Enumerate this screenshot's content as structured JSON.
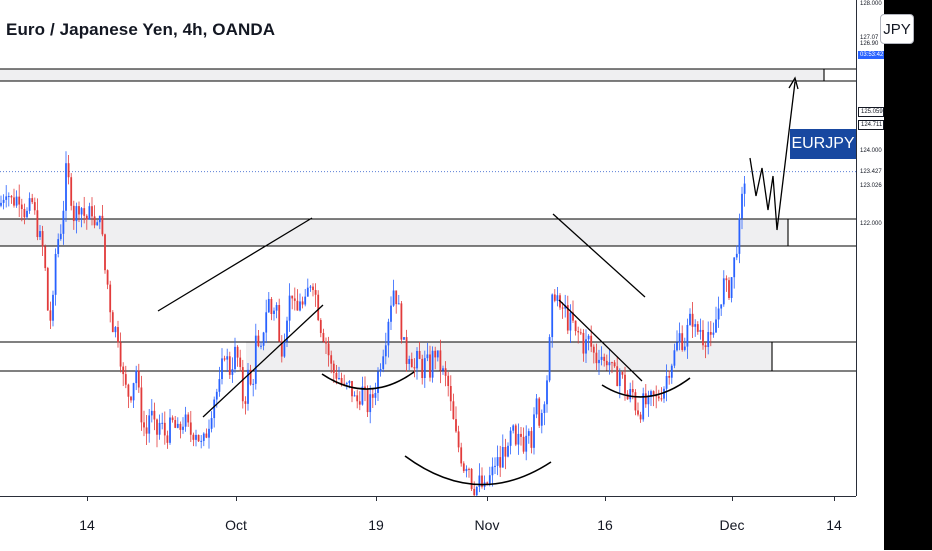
{
  "header": {
    "title": "Euro / Japanese Yen, 4h, OANDA"
  },
  "badges": {
    "currency": "JPY",
    "symbol": "EURJPY"
  },
  "colors": {
    "up": "#2962ff",
    "down": "#e23b3b",
    "zone_fill": "#efeff1",
    "drawing": "#000000",
    "price_line": "#5b7fd6",
    "badge_bg": "#1848a0"
  },
  "chart_data": {
    "type": "candlestick",
    "symbol": "EURJPY",
    "interval": "4h",
    "x_ticks": [
      "14",
      "Oct",
      "19",
      "Nov",
      "16",
      "Dec",
      "14"
    ],
    "y_ticks": [
      {
        "value": 128.0,
        "text": "128.000"
      },
      {
        "value": 124.0,
        "text": "124.000"
      },
      {
        "value": 122.0,
        "text": "122.000"
      }
    ],
    "price_labels": [
      {
        "value": 127.07,
        "text": "127.07",
        "style": "plain"
      },
      {
        "value": 126.9,
        "text": "126.90",
        "style": "plain"
      },
      {
        "value": 126.6,
        "text": "03:53:42",
        "style": "blue"
      },
      {
        "value": 125.059,
        "text": "125.059",
        "style": "boxed"
      },
      {
        "value": 124.711,
        "text": "124.711",
        "style": "boxed"
      },
      {
        "value": 123.427,
        "text": "123.427",
        "style": "plain"
      },
      {
        "value": 123.026,
        "text": "123.026",
        "style": "plain"
      }
    ],
    "last_price": 123.43,
    "ylim": [
      114.6,
      128.1
    ],
    "close_path": [
      [
        0,
        122.5
      ],
      [
        6,
        123.0
      ],
      [
        12,
        122.6
      ],
      [
        20,
        122.8
      ],
      [
        26,
        122.2
      ],
      [
        32,
        122.6
      ],
      [
        38,
        121.8
      ],
      [
        44,
        121.2
      ],
      [
        48,
        119.6
      ],
      [
        52,
        119.3
      ],
      [
        56,
        121.4
      ],
      [
        62,
        122.0
      ],
      [
        66,
        123.4
      ],
      [
        70,
        123.0
      ],
      [
        74,
        122.2
      ],
      [
        80,
        122.6
      ],
      [
        86,
        122.1
      ],
      [
        92,
        122.4
      ],
      [
        96,
        121.6
      ],
      [
        100,
        122.5
      ],
      [
        104,
        120.9
      ],
      [
        108,
        120.3
      ],
      [
        112,
        119.3
      ],
      [
        118,
        119.0
      ],
      [
        124,
        117.6
      ],
      [
        130,
        117.3
      ],
      [
        136,
        118.1
      ],
      [
        140,
        117.0
      ],
      [
        146,
        116.2
      ],
      [
        150,
        117.0
      ],
      [
        156,
        116.2
      ],
      [
        160,
        116.6
      ],
      [
        166,
        116.2
      ],
      [
        172,
        116.6
      ],
      [
        178,
        116.3
      ],
      [
        184,
        116.7
      ],
      [
        190,
        116.3
      ],
      [
        196,
        116.4
      ],
      [
        202,
        115.9
      ],
      [
        208,
        116.5
      ],
      [
        214,
        117.3
      ],
      [
        220,
        117.6
      ],
      [
        224,
        118.6
      ],
      [
        230,
        118.0
      ],
      [
        236,
        118.6
      ],
      [
        240,
        117.9
      ],
      [
        244,
        117.0
      ],
      [
        248,
        117.9
      ],
      [
        252,
        117.4
      ],
      [
        256,
        118.9
      ],
      [
        260,
        118.2
      ],
      [
        264,
        119.3
      ],
      [
        268,
        120.0
      ],
      [
        272,
        119.5
      ],
      [
        276,
        120.0
      ],
      [
        280,
        118.4
      ],
      [
        284,
        119.0
      ],
      [
        288,
        119.8
      ],
      [
        292,
        120.2
      ],
      [
        296,
        119.4
      ],
      [
        300,
        120.0
      ],
      [
        304,
        119.6
      ],
      [
        308,
        120.2
      ],
      [
        312,
        120.6
      ],
      [
        316,
        120.0
      ],
      [
        320,
        119.3
      ],
      [
        326,
        118.8
      ],
      [
        332,
        118.0
      ],
      [
        338,
        117.9
      ],
      [
        344,
        117.5
      ],
      [
        350,
        117.6
      ],
      [
        356,
        117.1
      ],
      [
        362,
        117.5
      ],
      [
        368,
        117.0
      ],
      [
        374,
        117.4
      ],
      [
        380,
        118.2
      ],
      [
        386,
        119.0
      ],
      [
        390,
        119.8
      ],
      [
        394,
        120.3
      ],
      [
        398,
        119.8
      ],
      [
        402,
        119.0
      ],
      [
        406,
        118.3
      ],
      [
        410,
        118.6
      ],
      [
        414,
        118.0
      ],
      [
        418,
        118.4
      ],
      [
        422,
        118.0
      ],
      [
        426,
        118.3
      ],
      [
        430,
        118.0
      ],
      [
        434,
        118.6
      ],
      [
        438,
        118.3
      ],
      [
        442,
        118.0
      ],
      [
        448,
        117.6
      ],
      [
        452,
        116.8
      ],
      [
        456,
        116.2
      ],
      [
        460,
        115.8
      ],
      [
        464,
        115.4
      ],
      [
        468,
        115.6
      ],
      [
        472,
        114.9
      ],
      [
        476,
        114.8
      ],
      [
        480,
        115.0
      ],
      [
        484,
        114.7
      ],
      [
        488,
        115.0
      ],
      [
        492,
        115.2
      ],
      [
        496,
        115.6
      ],
      [
        500,
        115.4
      ],
      [
        504,
        116.0
      ],
      [
        508,
        115.7
      ],
      [
        512,
        116.5
      ],
      [
        516,
        115.8
      ],
      [
        520,
        116.3
      ],
      [
        524,
        116.0
      ],
      [
        528,
        116.8
      ],
      [
        532,
        116.0
      ],
      [
        536,
        117.2
      ],
      [
        540,
        116.6
      ],
      [
        544,
        117.3
      ],
      [
        548,
        118.0
      ],
      [
        552,
        119.8
      ],
      [
        556,
        120.3
      ],
      [
        560,
        119.5
      ],
      [
        564,
        119.8
      ],
      [
        568,
        119.3
      ],
      [
        572,
        119.4
      ],
      [
        576,
        118.9
      ],
      [
        580,
        119.1
      ],
      [
        584,
        118.6
      ],
      [
        588,
        118.9
      ],
      [
        592,
        118.6
      ],
      [
        596,
        118.3
      ],
      [
        600,
        118.6
      ],
      [
        604,
        118.2
      ],
      [
        608,
        118.4
      ],
      [
        612,
        118.0
      ],
      [
        616,
        117.8
      ],
      [
        620,
        118.0
      ],
      [
        624,
        117.6
      ],
      [
        628,
        117.2
      ],
      [
        632,
        117.5
      ],
      [
        636,
        117.0
      ],
      [
        640,
        116.9
      ],
      [
        644,
        117.2
      ],
      [
        648,
        117.0
      ],
      [
        652,
        117.3
      ],
      [
        656,
        117.2
      ],
      [
        660,
        117.4
      ],
      [
        664,
        117.6
      ],
      [
        668,
        118.0
      ],
      [
        672,
        118.3
      ],
      [
        676,
        118.6
      ],
      [
        680,
        119.0
      ],
      [
        684,
        118.7
      ],
      [
        688,
        119.2
      ],
      [
        692,
        119.5
      ],
      [
        696,
        119.0
      ],
      [
        700,
        119.2
      ],
      [
        704,
        118.8
      ],
      [
        708,
        119.1
      ],
      [
        712,
        118.6
      ],
      [
        716,
        119.4
      ],
      [
        720,
        119.9
      ],
      [
        724,
        120.4
      ],
      [
        728,
        120.1
      ],
      [
        732,
        120.6
      ],
      [
        736,
        121.3
      ],
      [
        740,
        122.0
      ],
      [
        744,
        123.2
      ],
      [
        747,
        123.4
      ]
    ]
  }
}
